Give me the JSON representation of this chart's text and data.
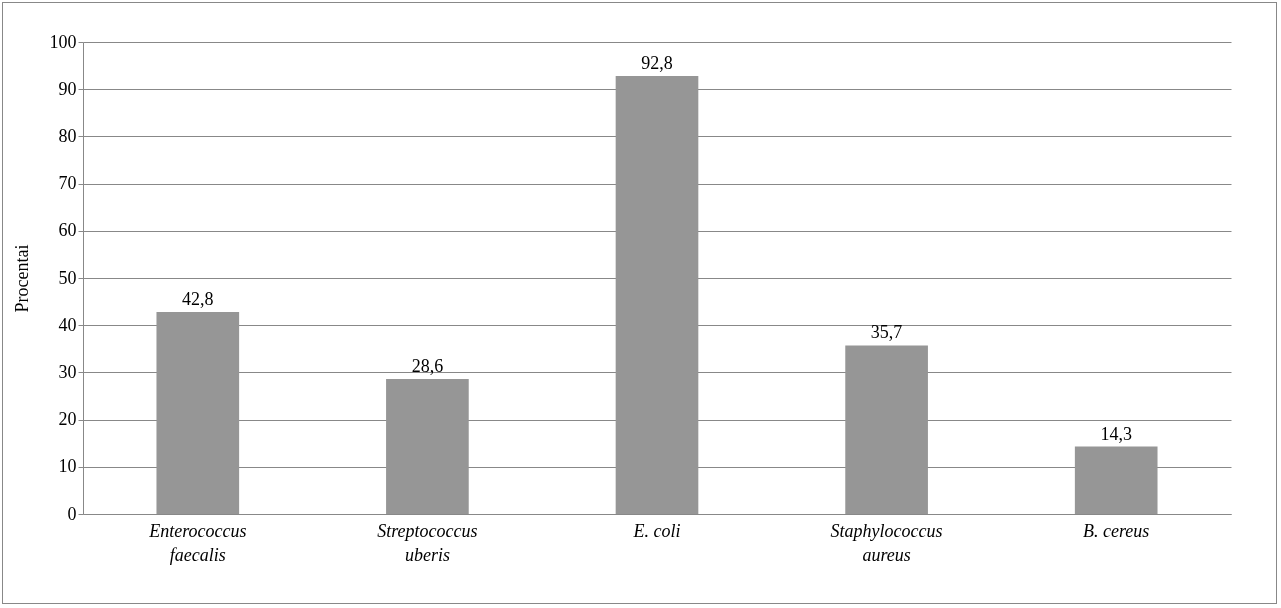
{
  "chart_data": {
    "type": "bar",
    "ylabel": "Procentai",
    "categories": [
      "Enterococcus faecalis",
      "Streptococcus uberis",
      "E. coli",
      "Staphylococcus aureus",
      "B. cereus"
    ],
    "values": [
      42.8,
      28.6,
      92.8,
      35.7,
      14.3
    ],
    "value_labels": [
      "42,8",
      "28,6",
      "92,8",
      "35,7",
      "14,3"
    ],
    "color": "#969696",
    "ylim": [
      0,
      100
    ],
    "yticks": [
      0,
      10,
      20,
      30,
      40,
      50,
      60,
      70,
      80,
      90,
      100
    ],
    "grid": "y"
  }
}
